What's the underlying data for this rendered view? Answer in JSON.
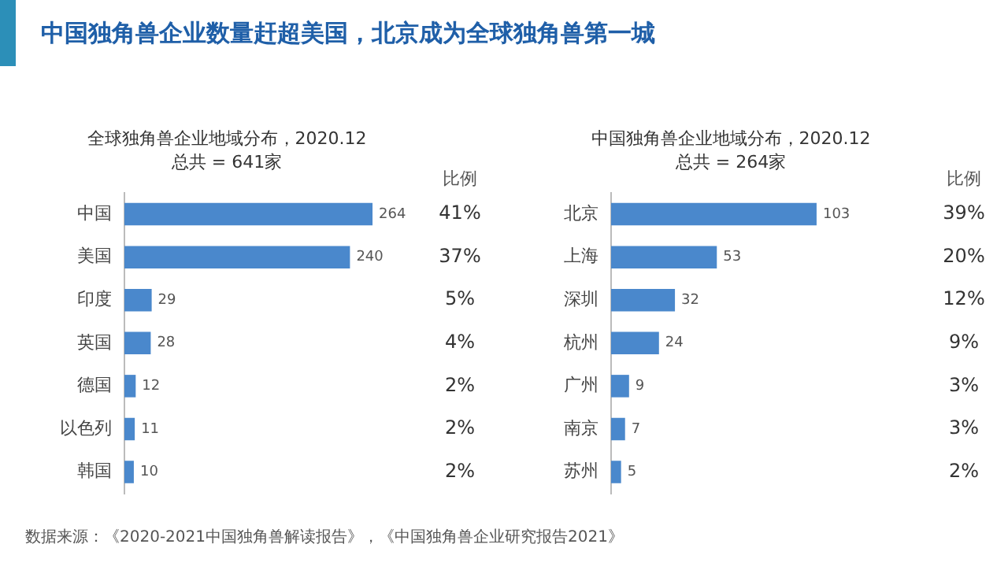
{
  "chart_data": [
    {
      "type": "bar",
      "orientation": "horizontal",
      "title": "全球独角兽企业地域分布，2020.12",
      "subtitle": "总共 = 641家",
      "categories": [
        "中国",
        "美国",
        "印度",
        "英国",
        "德国",
        "以色列",
        "韩国"
      ],
      "values": [
        264,
        240,
        29,
        28,
        12,
        11,
        10
      ],
      "color": "#4a88cc",
      "data_labels": true,
      "grid": false,
      "legend": false,
      "annotations": [
        "比例",
        "中国独角兽企业数量赶超美国，北京成为全球独角兽第一城",
        "41%",
        "37%",
        "5%",
        "4%",
        "2%",
        "2%",
        "2%"
      ]
    },
    {
      "type": "bar",
      "orientation": "horizontal",
      "title": "中国独角兽企业地域分布，2020.12",
      "subtitle": "总共 = 264家",
      "categories": [
        "北京",
        "上海",
        "深圳",
        "杭州",
        "广州",
        "南京",
        "苏州"
      ],
      "values": [
        103,
        53,
        32,
        24,
        9,
        7,
        5
      ],
      "color": "#4a88cc",
      "data_labels": true,
      "grid": false,
      "legend": false,
      "annotations": [
        "比例",
        "数据来源：《2020-2021中国独角兽解读报告》，《中国独角兽企业研究报告2021》",
        "39%",
        "20%",
        "12%",
        "9%",
        "3%",
        "3%",
        "2%"
      ]
    }
  ]
}
